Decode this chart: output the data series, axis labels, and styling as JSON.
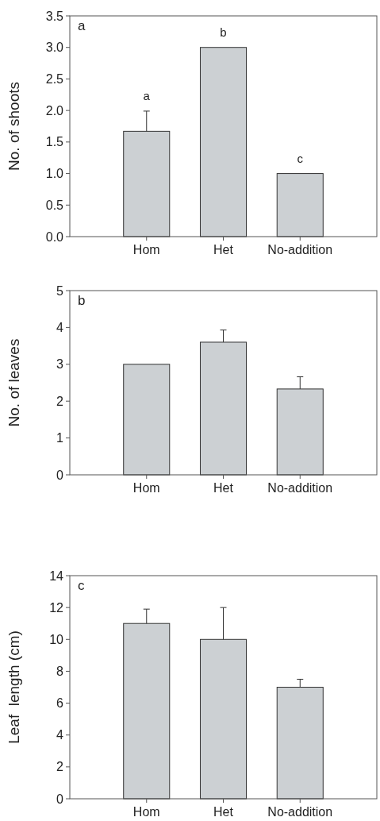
{
  "chart_data": [
    {
      "type": "bar",
      "title": "a",
      "ylabel": "No. of shoots",
      "categories": [
        "Hom",
        "Het",
        "No-addition"
      ],
      "values": [
        1.67,
        3.0,
        1.0
      ],
      "errors": [
        0.32,
        null,
        null
      ],
      "color": "#ccd0d3",
      "ylim": [
        0,
        3.5
      ],
      "yticks": [
        {
          "value": 0,
          "label": "0.0"
        },
        {
          "value": 0.5,
          "label": "0.5"
        },
        {
          "value": 1,
          "label": "1.0"
        },
        {
          "value": 1.5,
          "label": "1.5"
        },
        {
          "value": 2,
          "label": "2.0"
        },
        {
          "value": 2.5,
          "label": "2.5"
        },
        {
          "value": 3,
          "label": "3.0"
        },
        {
          "value": 3.5,
          "label": "3.5"
        }
      ],
      "annotations": [
        "a",
        "b",
        "c"
      ]
    },
    {
      "type": "bar",
      "title": "b",
      "ylabel": "No. of leaves",
      "categories": [
        "Hom",
        "Het",
        "No-addition"
      ],
      "values": [
        3.0,
        3.6,
        2.33
      ],
      "errors": [
        null,
        0.33,
        0.33
      ],
      "color": "#ccd0d3",
      "ylim": [
        0,
        5
      ],
      "yticks": [
        0,
        1,
        2,
        3,
        4,
        5
      ]
    },
    {
      "type": "bar",
      "title": "c",
      "ylabel": "Leaf  length (cm)",
      "categories": [
        "Hom",
        "Het",
        "No-addition"
      ],
      "values": [
        11,
        10,
        7
      ],
      "errors": [
        0.9,
        2,
        0.5
      ],
      "color": "#ccd0d3",
      "ylim": [
        0,
        14
      ],
      "yticks": [
        0,
        2,
        4,
        6,
        8,
        10,
        12,
        14
      ]
    }
  ]
}
